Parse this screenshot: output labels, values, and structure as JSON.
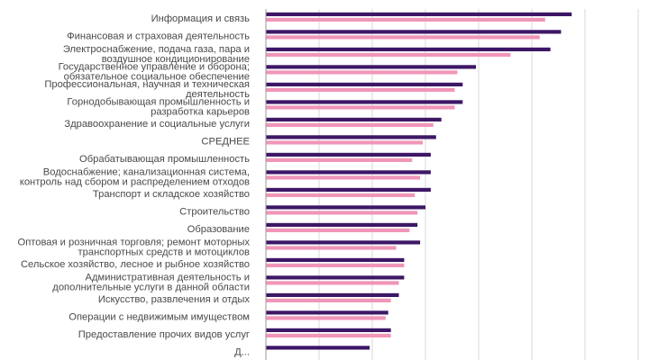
{
  "chart_data": {
    "type": "bar",
    "orientation": "horizontal",
    "grid": true,
    "xlim": [
      0,
      140
    ],
    "x_gridlines": [
      0,
      20,
      40,
      60,
      80,
      100,
      120,
      140
    ],
    "categories": [
      [
        "Информация и связь"
      ],
      [
        "Финансовая и страховая деятельность"
      ],
      [
        "Электроснабжение, подача газа, пара и",
        "воздушное кондиционирование"
      ],
      [
        "Государственное управление и оборона;",
        "обязательное социальное обеспечение"
      ],
      [
        "Профессиональная, научная и техническая",
        "деятельность"
      ],
      [
        "Горнодобывающая промышленность и",
        "разработка карьеров"
      ],
      [
        "Здравоохранение и социальные услуги"
      ],
      [
        "СРЕДНЕЕ"
      ],
      [
        "Обрабатывающая промышленность"
      ],
      [
        "Водоснабжение; канализационная система,",
        "контроль над сбором и распределением отходов"
      ],
      [
        "Транспорт и складское хозяйство"
      ],
      [
        "Строительство"
      ],
      [
        "Образование"
      ],
      [
        "Оптовая и розничная торговля; ремонт моторных",
        "транспортных средств и мотоциклов"
      ],
      [
        "Сельское хозяйство, лесное и рыбное хозяйство"
      ],
      [
        "Административная деятельность и",
        "дополнительные услуги в данной области"
      ],
      [
        "Искусство, развлечения и отдых"
      ],
      [
        "Операции с недвижимым имуществом"
      ],
      [
        "Предоставление прочих видов услуг"
      ],
      [
        "Д..."
      ]
    ],
    "series": [
      {
        "color": "#3d1766",
        "values": [
          115,
          111,
          107,
          79,
          74,
          74,
          66,
          64,
          62,
          62,
          62,
          60,
          57,
          58,
          52,
          52,
          50,
          46,
          47,
          39
        ]
      },
      {
        "color": "#f096b8",
        "values": [
          105,
          103,
          92,
          72,
          71,
          71,
          63,
          59,
          55,
          58,
          56,
          57,
          54,
          49,
          52,
          50,
          47,
          45,
          47,
          null
        ]
      }
    ]
  }
}
